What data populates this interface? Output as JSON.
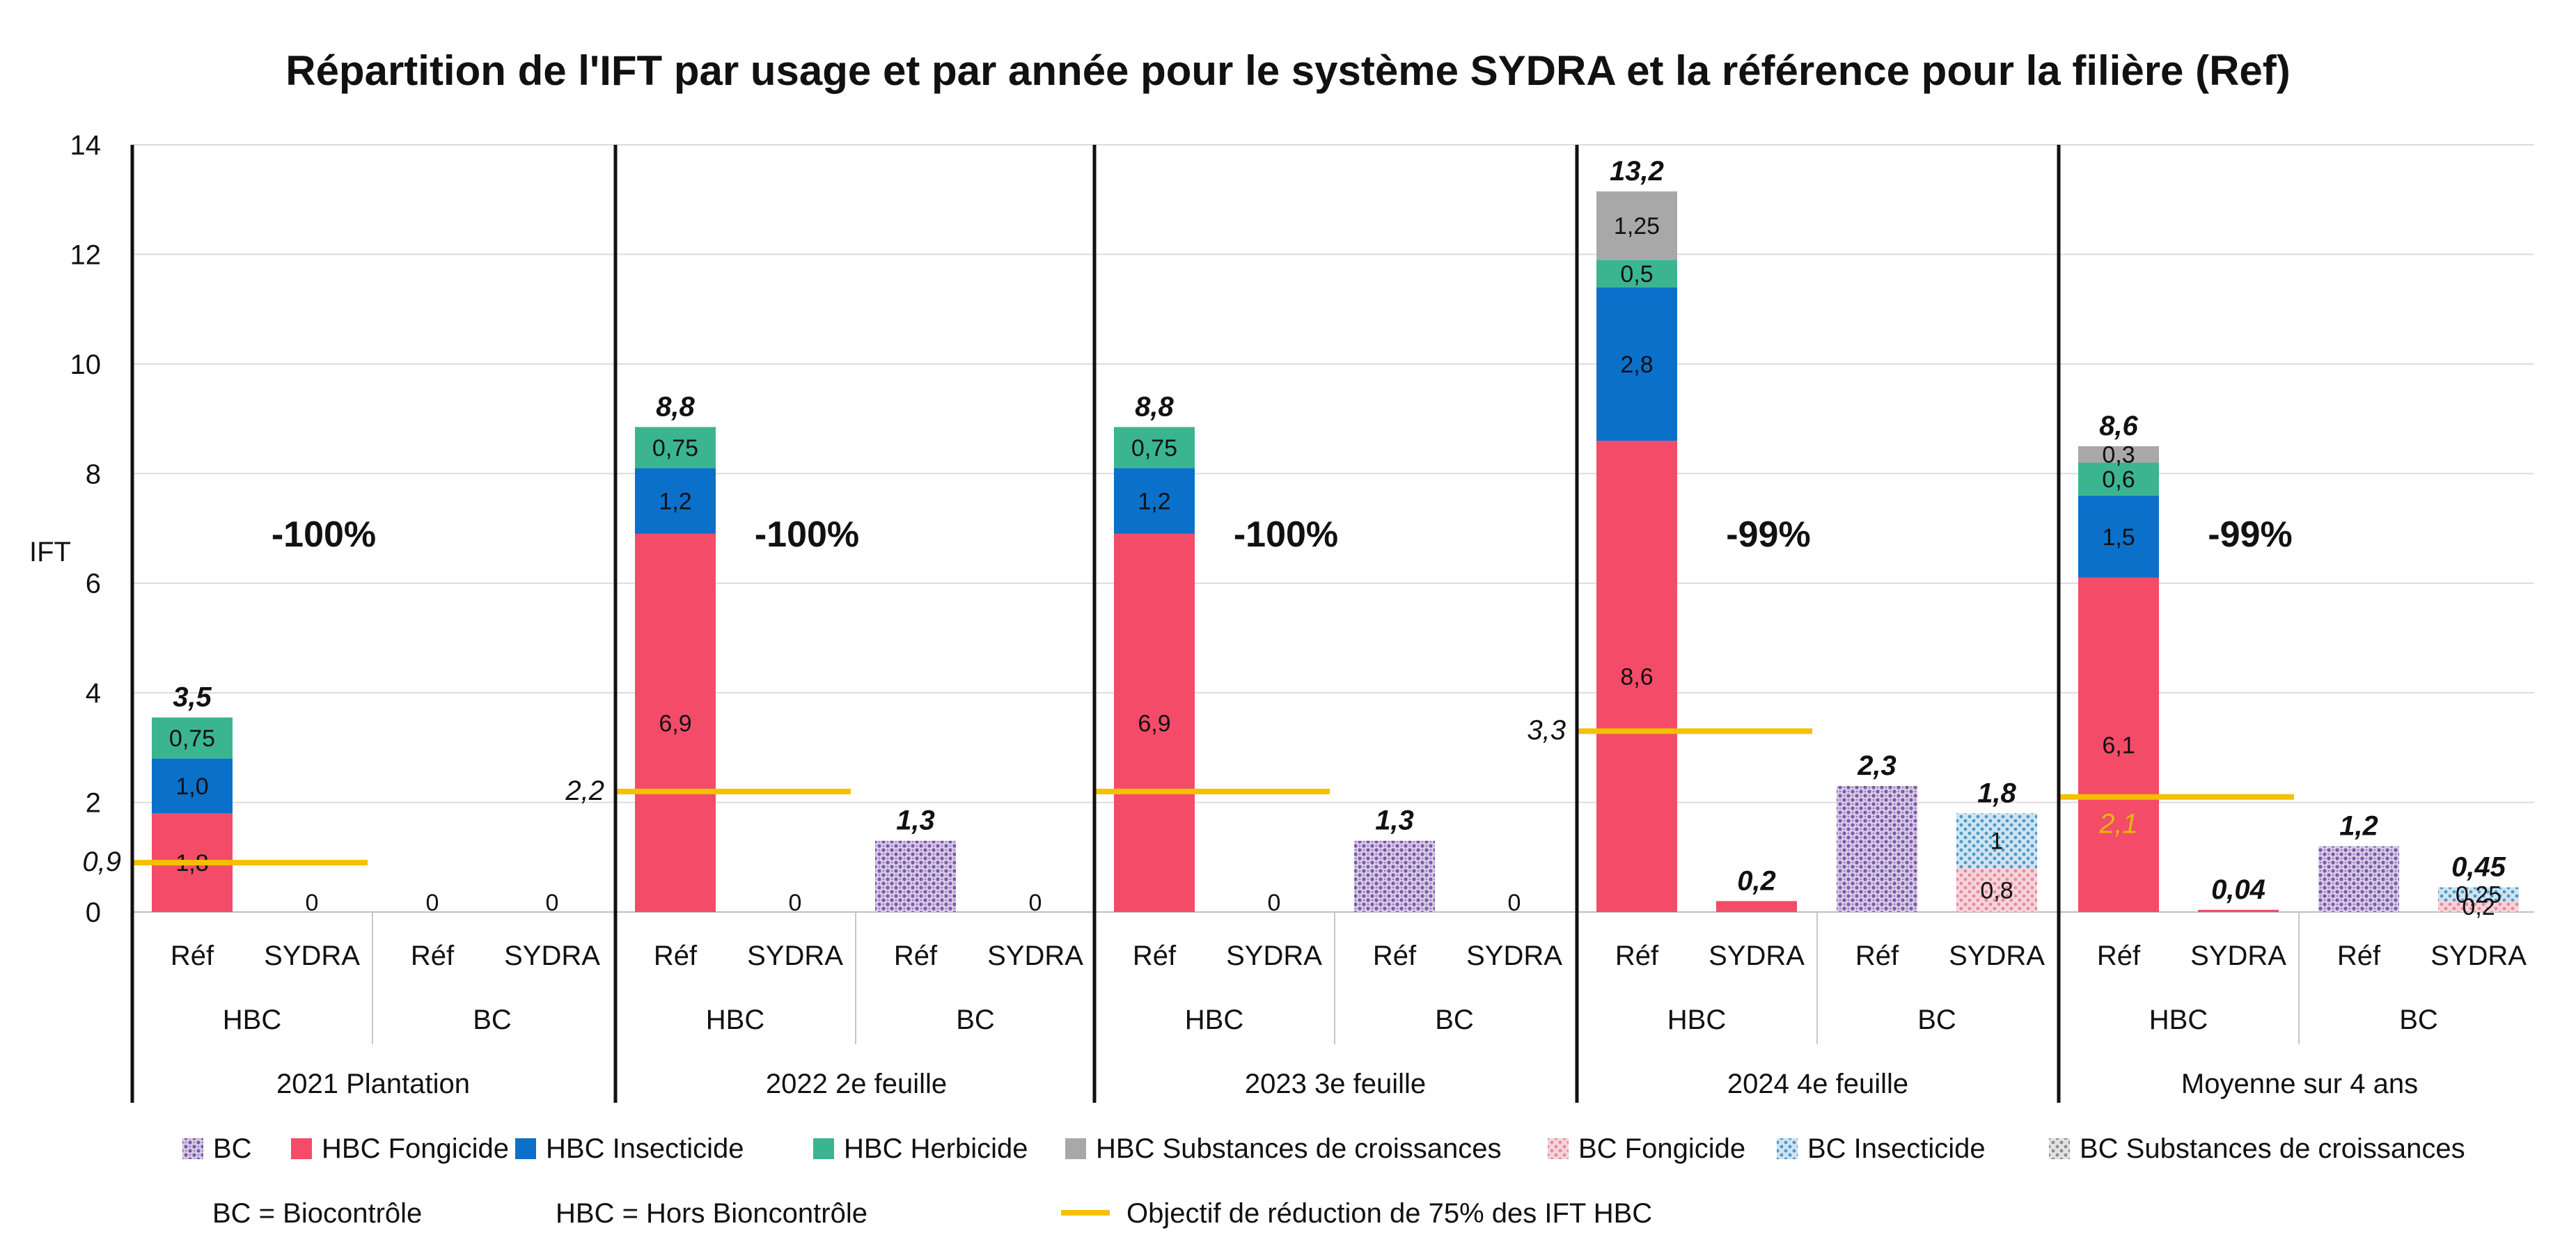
{
  "chart_data": {
    "type": "bar",
    "stacked": true,
    "title": "Répartition de l'IFT par usage et par année pour le système SYDRA et la référence pour la filière (Ref)",
    "ylabel": "IFT",
    "ylim": [
      0,
      14
    ],
    "yticks": [
      "0",
      "2",
      "4",
      "6",
      "8",
      "10",
      "12",
      "14"
    ],
    "grid": true,
    "groups": [
      {
        "name": "2021 Plantation",
        "reduction": "-100%",
        "objective": 0.9,
        "objective_label": "0,9",
        "bars": [
          {
            "usage": "HBC",
            "system": "Réf",
            "total_label": "3,5",
            "zero_label": "",
            "segments": [
              {
                "series": "HBC Fongicide",
                "value": 1.8,
                "label": "1,8"
              },
              {
                "series": "HBC Insecticide",
                "value": 1.0,
                "label": "1,0"
              },
              {
                "series": "HBC Herbicide",
                "value": 0.75,
                "label": "0,75"
              }
            ]
          },
          {
            "usage": "HBC",
            "system": "SYDRA",
            "total_label": "",
            "zero_label": "0",
            "segments": []
          },
          {
            "usage": "BC",
            "system": "Réf",
            "total_label": "",
            "zero_label": "0",
            "segments": []
          },
          {
            "usage": "BC",
            "system": "SYDRA",
            "total_label": "",
            "zero_label": "0",
            "segments": []
          }
        ]
      },
      {
        "name": "2022 2e feuille",
        "reduction": "-100%",
        "objective": 2.2,
        "objective_label": "2,2",
        "bars": [
          {
            "usage": "HBC",
            "system": "Réf",
            "total_label": "8,8",
            "zero_label": "",
            "segments": [
              {
                "series": "HBC Fongicide",
                "value": 6.9,
                "label": "6,9"
              },
              {
                "series": "HBC Insecticide",
                "value": 1.2,
                "label": "1,2"
              },
              {
                "series": "HBC Herbicide",
                "value": 0.75,
                "label": "0,75"
              }
            ]
          },
          {
            "usage": "HBC",
            "system": "SYDRA",
            "total_label": "",
            "zero_label": "0",
            "segments": []
          },
          {
            "usage": "BC",
            "system": "Réf",
            "total_label": "1,3",
            "zero_label": "",
            "segments": [
              {
                "series": "BC",
                "value": 1.3,
                "label": ""
              }
            ]
          },
          {
            "usage": "BC",
            "system": "SYDRA",
            "total_label": "",
            "zero_label": "0",
            "segments": []
          }
        ]
      },
      {
        "name": "2023 3e feuille",
        "reduction": "-100%",
        "objective": 2.2,
        "objective_label": "",
        "bars": [
          {
            "usage": "HBC",
            "system": "Réf",
            "total_label": "8,8",
            "zero_label": "",
            "segments": [
              {
                "series": "HBC Fongicide",
                "value": 6.9,
                "label": "6,9"
              },
              {
                "series": "HBC Insecticide",
                "value": 1.2,
                "label": "1,2"
              },
              {
                "series": "HBC Herbicide",
                "value": 0.75,
                "label": "0,75"
              }
            ]
          },
          {
            "usage": "HBC",
            "system": "SYDRA",
            "total_label": "",
            "zero_label": "0",
            "segments": []
          },
          {
            "usage": "BC",
            "system": "Réf",
            "total_label": "1,3",
            "zero_label": "",
            "segments": [
              {
                "series": "BC",
                "value": 1.3,
                "label": ""
              }
            ]
          },
          {
            "usage": "BC",
            "system": "SYDRA",
            "total_label": "",
            "zero_label": "0",
            "segments": []
          }
        ]
      },
      {
        "name": "2024 4e feuille",
        "reduction": "-99%",
        "objective": 3.3,
        "objective_label": "3,3",
        "bars": [
          {
            "usage": "HBC",
            "system": "Réf",
            "total_label": "13,2",
            "zero_label": "",
            "segments": [
              {
                "series": "HBC Fongicide",
                "value": 8.6,
                "label": "8,6"
              },
              {
                "series": "HBC Insecticide",
                "value": 2.8,
                "label": "2,8"
              },
              {
                "series": "HBC Herbicide",
                "value": 0.5,
                "label": "0,5"
              },
              {
                "series": "HBC Substances de croissances",
                "value": 1.25,
                "label": "1,25"
              }
            ]
          },
          {
            "usage": "HBC",
            "system": "SYDRA",
            "total_label": "0,2",
            "zero_label": "",
            "segments": [
              {
                "series": "HBC Fongicide",
                "value": 0.2,
                "label": ""
              }
            ]
          },
          {
            "usage": "BC",
            "system": "Réf",
            "total_label": "2,3",
            "zero_label": "",
            "segments": [
              {
                "series": "BC",
                "value": 2.3,
                "label": ""
              }
            ]
          },
          {
            "usage": "BC",
            "system": "SYDRA",
            "total_label": "1,8",
            "zero_label": "",
            "segments": [
              {
                "series": "BC Fongicide",
                "value": 0.8,
                "label": "0,8"
              },
              {
                "series": "BC Insecticide",
                "value": 1.0,
                "label": "1"
              }
            ]
          }
        ]
      },
      {
        "name": "Moyenne sur 4 ans",
        "reduction": "-99%",
        "objective": 2.1,
        "objective_label": "2,1",
        "bars": [
          {
            "usage": "HBC",
            "system": "Réf",
            "total_label": "8,6",
            "zero_label": "",
            "segments": [
              {
                "series": "HBC Fongicide",
                "value": 6.1,
                "label": "6,1"
              },
              {
                "series": "HBC Insecticide",
                "value": 1.5,
                "label": "1,5"
              },
              {
                "series": "HBC Herbicide",
                "value": 0.6,
                "label": "0,6"
              },
              {
                "series": "HBC Substances de croissances",
                "value": 0.3,
                "label": "0,3"
              }
            ]
          },
          {
            "usage": "HBC",
            "system": "SYDRA",
            "total_label": "0,04",
            "zero_label": "",
            "segments": [
              {
                "series": "HBC Fongicide",
                "value": 0.04,
                "label": ""
              }
            ]
          },
          {
            "usage": "BC",
            "system": "Réf",
            "total_label": "1,2",
            "zero_label": "",
            "segments": [
              {
                "series": "BC",
                "value": 1.2,
                "label": ""
              }
            ]
          },
          {
            "usage": "BC",
            "system": "SYDRA",
            "total_label": "0,45",
            "zero_label": "",
            "segments": [
              {
                "series": "BC Fongicide",
                "value": 0.2,
                "label": "0,2"
              },
              {
                "series": "BC Insecticide",
                "value": 0.25,
                "label": "0,25"
              }
            ]
          }
        ]
      }
    ],
    "legend": [
      {
        "name": "BC",
        "color": "#7b5aa6",
        "pattern": "dots"
      },
      {
        "name": "HBC Fongicide",
        "color": "#f44b69",
        "pattern": "solid"
      },
      {
        "name": "HBC Insecticide",
        "color": "#0b70c9",
        "pattern": "solid"
      },
      {
        "name": "HBC Herbicide",
        "color": "#3bb58f",
        "pattern": "solid"
      },
      {
        "name": "HBC Substances de croissances",
        "color": "#a8a8a8",
        "pattern": "solid"
      },
      {
        "name": "BC Fongicide",
        "color": "#e58a9c",
        "pattern": "dots"
      },
      {
        "name": "BC Insecticide",
        "color": "#4a9ac8",
        "pattern": "dots"
      },
      {
        "name": "BC Substances de croissances",
        "color": "#8c8c8c",
        "pattern": "dots"
      }
    ],
    "notes": [
      "BC = Biocontrôle",
      "HBC = Hors Bioncontrôle"
    ],
    "objective_legend": "Objectif de réduction de 75% des IFT HBC",
    "objective_color": "#f5c000",
    "moyenne_objective_label_color": "#e6b800"
  }
}
